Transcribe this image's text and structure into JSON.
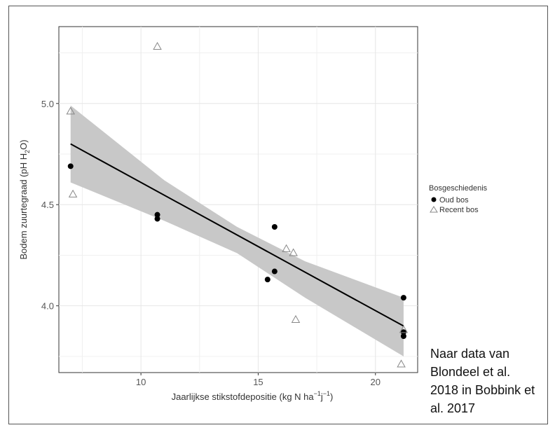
{
  "chart_data": {
    "type": "scatter",
    "xlabel": "Jaarlijkse stikstofdepositie (kg N ha",
    "xlabel_sup1": "−1",
    "xlabel_mid": "j",
    "xlabel_sup2": "−1",
    "xlabel_end": ")",
    "ylabel": "Bodem zuurtegraad (pH H",
    "ylabel_sub": "2",
    "ylabel_end": "O)",
    "xlim": [
      6.5,
      21.8
    ],
    "ylim": [
      3.67,
      5.38
    ],
    "x_ticks": [
      10,
      15,
      20
    ],
    "y_ticks": [
      4.0,
      4.5,
      5.0
    ],
    "x_tick_labels": [
      "10",
      "15",
      "20"
    ],
    "y_tick_labels": [
      "4.0",
      "4.5",
      "5.0"
    ],
    "grid": true,
    "legend": {
      "title": "Bosgeschiedenis",
      "position": "right",
      "entries": [
        "Oud bos",
        "Recent bos"
      ]
    },
    "series": [
      {
        "name": "Oud bos",
        "marker": "filled-circle",
        "color": "#000000",
        "points": [
          [
            7.0,
            4.69
          ],
          [
            10.7,
            4.45
          ],
          [
            10.7,
            4.43
          ],
          [
            15.4,
            4.13
          ],
          [
            15.7,
            4.17
          ],
          [
            15.7,
            4.39
          ],
          [
            21.2,
            4.04
          ],
          [
            21.2,
            3.87
          ],
          [
            21.2,
            3.85
          ]
        ]
      },
      {
        "name": "Recent bos",
        "marker": "open-triangle",
        "color": "#888888",
        "points": [
          [
            7.0,
            4.96
          ],
          [
            7.1,
            4.55
          ],
          [
            10.7,
            5.28
          ],
          [
            16.2,
            4.28
          ],
          [
            16.5,
            4.26
          ],
          [
            16.6,
            3.93
          ],
          [
            21.2,
            3.88
          ],
          [
            21.1,
            3.71
          ]
        ]
      }
    ],
    "regression": {
      "line": [
        [
          7.0,
          4.8
        ],
        [
          21.2,
          3.9
        ]
      ],
      "ci_upper": [
        [
          7.0,
          4.99
        ],
        [
          11.0,
          4.62
        ],
        [
          14.1,
          4.39
        ],
        [
          17.0,
          4.22
        ],
        [
          21.2,
          4.04
        ]
      ],
      "ci_lower": [
        [
          7.0,
          4.61
        ],
        [
          11.0,
          4.42
        ],
        [
          14.1,
          4.26
        ],
        [
          17.0,
          4.04
        ],
        [
          21.2,
          3.75
        ]
      ],
      "line_color": "#000000",
      "band_color": "#c8c8c8"
    }
  },
  "caption": "Naar data van\nBlondeel et al.\n2018 in Bobbink et\nal. 2017"
}
